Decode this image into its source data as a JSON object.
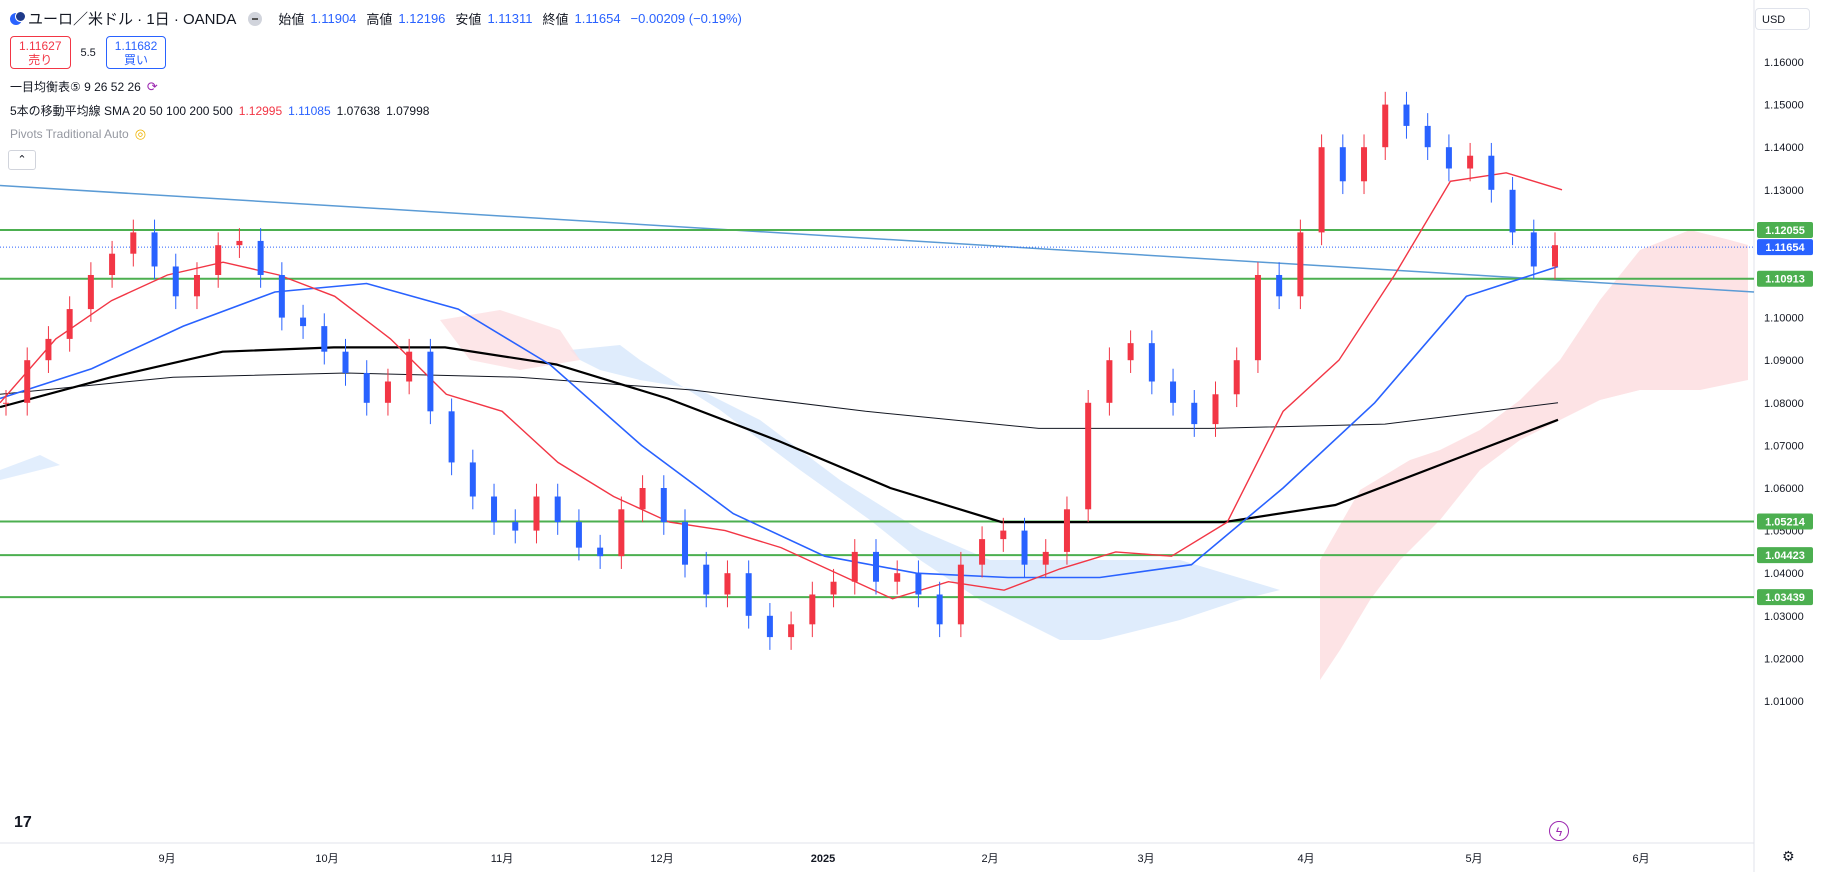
{
  "header": {
    "symbol_title": "ユーロ／米ドル · 1日 · OANDA",
    "open_label": "始値",
    "open": "1.11904",
    "high_label": "高値",
    "high": "1.12196",
    "low_label": "安値",
    "low": "1.11311",
    "close_label": "終値",
    "close": "1.11654",
    "change": "−0.00209 (−0.19%)"
  },
  "trade": {
    "sell_price": "1.11627",
    "sell_label": "売り",
    "spread": "5.5",
    "buy_price": "1.11682",
    "buy_label": "買い"
  },
  "indicators": {
    "ichimoku": "一目均衡表⑤ 9 26 52 26",
    "sma_title": "5本の移動平均線 SMA 20 50 100 200 500",
    "sma_values": [
      "1.12995",
      "1.11085",
      "1.07638",
      "1.07998"
    ],
    "pivots": "Pivots Traditional Auto"
  },
  "currency_select": "USD",
  "colors": {
    "up": "#f23645",
    "down": "#2962ff",
    "sma20": "#f23645",
    "sma50": "#2962ff",
    "sma_black": "#000000",
    "hline": "#4caf50",
    "trendline": "#5b9bd5",
    "cloud_bull": "#fde0e2",
    "cloud_bear": "#dbeafc"
  },
  "chart_data": {
    "type": "candlestick",
    "y_axis_ticks": [
      "1.16000",
      "1.15000",
      "1.14000",
      "1.13000",
      "1.12000",
      "1.11000",
      "1.10000",
      "1.09000",
      "1.08000",
      "1.07000",
      "1.06000",
      "1.05000",
      "1.04000",
      "1.03000",
      "1.02000",
      "1.01000"
    ],
    "ylim": [
      1.005,
      1.167
    ],
    "x_axis_ticks": [
      "9月",
      "10月",
      "11月",
      "12月",
      "2025",
      "2月",
      "3月",
      "4月",
      "5月",
      "6月"
    ],
    "horizontal_levels": [
      {
        "value": 1.12055,
        "label": "1.12055"
      },
      {
        "value": 1.10913,
        "label": "1.10913"
      },
      {
        "value": 1.05214,
        "label": "1.05214"
      },
      {
        "value": 1.04423,
        "label": "1.04423"
      },
      {
        "value": 1.03439,
        "label": "1.03439"
      }
    ],
    "last_price": {
      "value": 1.11654,
      "label": "1.11654"
    },
    "trendline": {
      "start_value": 1.131,
      "end_value": 1.106
    },
    "sma20_anchors": [
      1.08,
      1.095,
      1.104,
      1.11,
      1.113,
      1.11,
      1.105,
      1.095,
      1.082,
      1.078,
      1.066,
      1.058,
      1.052,
      1.05,
      1.046,
      1.04,
      1.034,
      1.038,
      1.036,
      1.041,
      1.045,
      1.044,
      1.052,
      1.078,
      1.09,
      1.11,
      1.132,
      1.134,
      1.13
    ],
    "sma50_anchors": [
      1.081,
      1.088,
      1.098,
      1.106,
      1.108,
      1.102,
      1.089,
      1.07,
      1.054,
      1.044,
      1.04,
      1.039,
      1.039,
      1.042,
      1.06,
      1.08,
      1.105,
      1.112
    ],
    "sma200_anchors": [
      1.079,
      1.086,
      1.092,
      1.093,
      1.093,
      1.089,
      1.081,
      1.071,
      1.06,
      1.052,
      1.052,
      1.052,
      1.056,
      1.066,
      1.076
    ],
    "sma500_anchors": [
      1.082,
      1.086,
      1.087,
      1.086,
      1.083,
      1.078,
      1.074,
      1.074,
      1.075,
      1.08
    ]
  }
}
